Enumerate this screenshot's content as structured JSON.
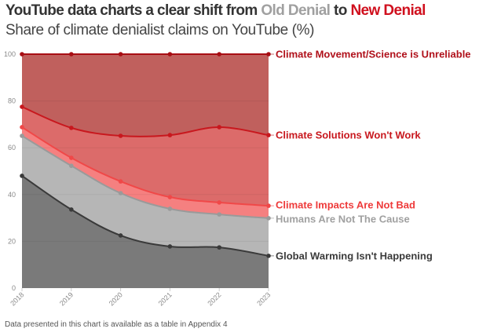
{
  "header": {
    "title_prefix": "YouTube data charts a clear shift from ",
    "title_old": "Old Denial",
    "title_mid": " to ",
    "title_new": "New Denial",
    "subtitle": "Share of climate denialist claims on YouTube (%)"
  },
  "footer": "Data presented in this chart is available as a table in Appendix 4",
  "chart_data": {
    "type": "area",
    "stacked": true,
    "title": "YouTube data charts a clear shift from Old Denial to New Denial",
    "subtitle": "Share of climate denialist claims on YouTube (%)",
    "xlabel": "",
    "ylabel": "",
    "x": [
      "2018",
      "2019",
      "2020",
      "2021",
      "2022",
      "2023"
    ],
    "ylim": [
      0,
      100
    ],
    "yticks": [
      0,
      20,
      40,
      60,
      80,
      100
    ],
    "grid": true,
    "legend": "right, direct labels at line ends",
    "cumulative_note": "values below are cumulative stacked tops (%)",
    "series": [
      {
        "name": "Global Warming Isn't Happening",
        "color": "#3a3a3a",
        "fill": "#7a7a7a",
        "label_color": "#3a3a3a",
        "cumulative": [
          48.0,
          33.6,
          22.5,
          17.8,
          17.4,
          13.8
        ]
      },
      {
        "name": "Humans Are Not The Cause",
        "color": "#9a9a9a",
        "fill": "#b6b6b6",
        "label_color": "#a0a0a0",
        "cumulative": [
          65.1,
          52.3,
          40.6,
          33.9,
          31.5,
          29.9
        ]
      },
      {
        "name": "Climate Impacts Are Not Bad",
        "color": "#f04848",
        "fill": "#f58080",
        "label_color": "#ee3a3a",
        "cumulative": [
          68.8,
          55.7,
          45.6,
          38.9,
          36.6,
          35.2
        ]
      },
      {
        "name": "Climate Solutions Won't Work",
        "color": "#c8181e",
        "fill": "#dc6b6a",
        "label_color": "#c8181e",
        "cumulative": [
          77.5,
          68.5,
          65.1,
          65.4,
          68.8,
          65.4
        ]
      },
      {
        "name": "Climate Movement/Science is Unreliable",
        "color": "#a80e14",
        "fill": "#c0605d",
        "label_color": "#b0101a",
        "cumulative": [
          100,
          100,
          100,
          100,
          100,
          100
        ]
      }
    ],
    "values": {
      "Global Warming Isn't Happening": [
        48.0,
        33.6,
        22.5,
        17.8,
        17.4,
        13.8
      ],
      "Humans Are Not The Cause": [
        17.1,
        18.7,
        18.1,
        16.1,
        14.1,
        16.1
      ],
      "Climate Impacts Are Not Bad": [
        3.7,
        3.4,
        5.0,
        5.0,
        5.1,
        5.3
      ],
      "Climate Solutions Won't Work": [
        8.7,
        12.8,
        19.5,
        26.5,
        32.2,
        30.2
      ],
      "Climate Movement/Science is Unreliable": [
        22.5,
        31.5,
        34.9,
        34.6,
        31.2,
        34.6
      ]
    }
  }
}
